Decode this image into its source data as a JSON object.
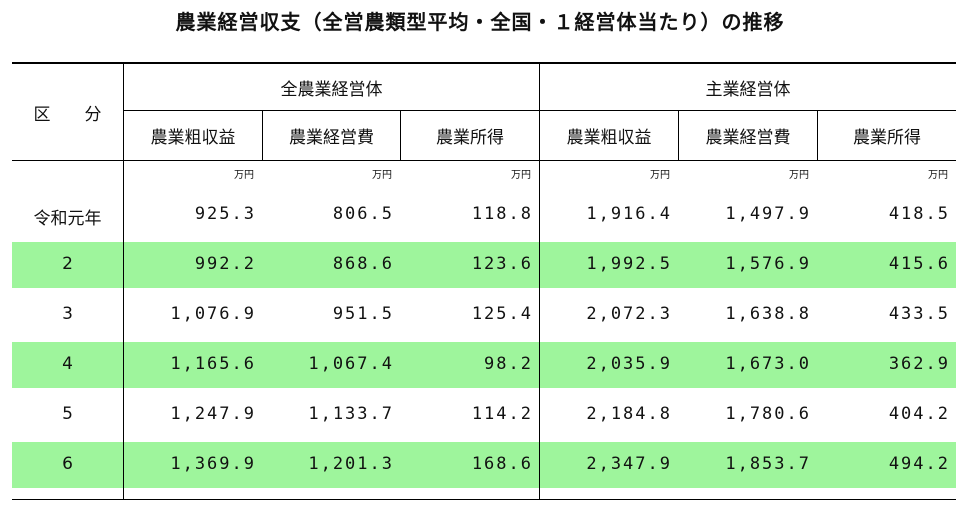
{
  "title": "農業経営収支（全営農類型平均・全国・１経営体当たり）の推移",
  "header": {
    "row_header": "区　　分",
    "group_all": "全農業経営体",
    "group_main": "主業経営体",
    "columns": [
      "農業粗収益",
      "農業経営費",
      "農業所得",
      "農業粗収益",
      "農業経営費",
      "農業所得"
    ],
    "unit": "万円"
  },
  "rows": [
    {
      "label": "令和元年",
      "values": [
        "925.3",
        "806.5",
        "118.8",
        "1,916.4",
        "1,497.9",
        "418.5"
      ],
      "highlight": false
    },
    {
      "label": "2",
      "values": [
        "992.2",
        "868.6",
        "123.6",
        "1,992.5",
        "1,576.9",
        "415.6"
      ],
      "highlight": true
    },
    {
      "label": "3",
      "values": [
        "1,076.9",
        "951.5",
        "125.4",
        "2,072.3",
        "1,638.8",
        "433.5"
      ],
      "highlight": false
    },
    {
      "label": "4",
      "values": [
        "1,165.6",
        "1,067.4",
        "98.2",
        "2,035.9",
        "1,673.0",
        "362.9"
      ],
      "highlight": true
    },
    {
      "label": "5",
      "values": [
        "1,247.9",
        "1,133.7",
        "114.2",
        "2,184.8",
        "1,780.6",
        "404.2"
      ],
      "highlight": false
    },
    {
      "label": "6",
      "values": [
        "1,369.9",
        "1,201.3",
        "168.6",
        "2,347.9",
        "1,853.7",
        "494.2"
      ],
      "highlight": true
    }
  ],
  "colors": {
    "highlight": "#9ef59c"
  }
}
